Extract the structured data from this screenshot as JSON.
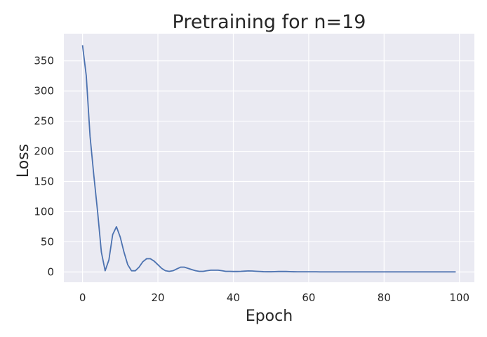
{
  "chart_data": {
    "type": "line",
    "title": "Pretraining for n=19",
    "xlabel": "Epoch",
    "ylabel": "Loss",
    "xlim": [
      -4.95,
      103.95
    ],
    "ylim": [
      -17,
      395
    ],
    "xticks": [
      0,
      20,
      40,
      60,
      80,
      100
    ],
    "yticks": [
      0,
      50,
      100,
      150,
      200,
      250,
      300,
      350
    ],
    "grid": true,
    "series": [
      {
        "color": "#4c72b0",
        "x": [
          0,
          1,
          2,
          3,
          4,
          5,
          6,
          7,
          8,
          9,
          10,
          11,
          12,
          13,
          14,
          15,
          16,
          17,
          18,
          19,
          20,
          21,
          22,
          23,
          24,
          25,
          26,
          27,
          28,
          29,
          30,
          31,
          32,
          33,
          34,
          35,
          36,
          37,
          38,
          39,
          40,
          41,
          42,
          43,
          44,
          45,
          46,
          47,
          48,
          49,
          50,
          51,
          52,
          53,
          54,
          55,
          56,
          57,
          58,
          59,
          60,
          61,
          62,
          63,
          64,
          65,
          66,
          67,
          68,
          69,
          70,
          71,
          72,
          73,
          74,
          75,
          76,
          77,
          78,
          79,
          80,
          81,
          82,
          83,
          84,
          85,
          86,
          87,
          88,
          89,
          90,
          91,
          92,
          93,
          94,
          95,
          96,
          97,
          98,
          99
        ],
        "y": [
          376,
          325,
          225,
          160,
          100,
          33,
          2,
          20,
          62,
          75,
          58,
          33,
          12,
          2,
          2,
          8,
          17,
          22,
          22,
          18,
          12,
          6,
          2,
          1,
          2,
          5,
          8,
          8,
          6,
          4,
          2,
          1,
          1,
          2,
          3,
          3,
          3,
          2,
          1,
          1,
          0.8,
          0.8,
          1,
          1.4,
          1.8,
          1.6,
          1.2,
          0.9,
          0.5,
          0.4,
          0.4,
          0.6,
          0.8,
          0.9,
          0.8,
          0.6,
          0.4,
          0.3,
          0.3,
          0.3,
          0.3,
          0.3,
          0.3,
          0.2,
          0.2,
          0.2,
          0.2,
          0.2,
          0.2,
          0.2,
          0.2,
          0.2,
          0.2,
          0.2,
          0.2,
          0.2,
          0.2,
          0.2,
          0.2,
          0.2,
          0.2,
          0.2,
          0.2,
          0.2,
          0.2,
          0.2,
          0.2,
          0.2,
          0.2,
          0.2,
          0.2,
          0.2,
          0.2,
          0.2,
          0.2,
          0.2,
          0.2,
          0.2,
          0.2,
          0.2
        ]
      }
    ]
  }
}
